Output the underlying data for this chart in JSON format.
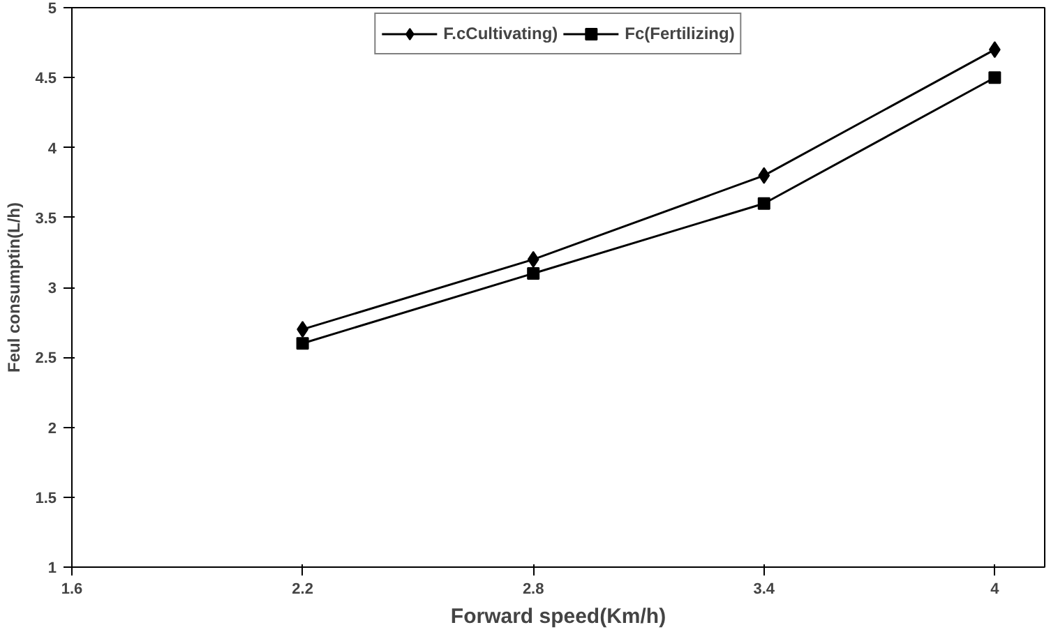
{
  "chart_data": {
    "type": "line",
    "xlabel": "Forward speed(Km/h)",
    "ylabel": "Feul consumptin(L/h)",
    "x": [
      2.2,
      2.8,
      3.4,
      4
    ],
    "series": [
      {
        "name": "F.cCultivating)",
        "color": "#000000",
        "marker": "diamond",
        "values": [
          2.7,
          3.2,
          3.8,
          4.7
        ]
      },
      {
        "name": "Fc(Fertilizing)",
        "color": "#000000",
        "marker": "square",
        "values": [
          2.6,
          3.1,
          3.6,
          4.5
        ]
      }
    ],
    "xlim": [
      1.6,
      4.13
    ],
    "xticks": [
      1.6,
      2.2,
      2.8,
      3.4,
      4
    ],
    "ylim": [
      1,
      5
    ],
    "yticks": [
      1,
      1.5,
      2,
      2.5,
      3,
      3.5,
      4,
      4.5,
      5
    ],
    "grid": false,
    "legend": "top",
    "line_style": "solid"
  }
}
